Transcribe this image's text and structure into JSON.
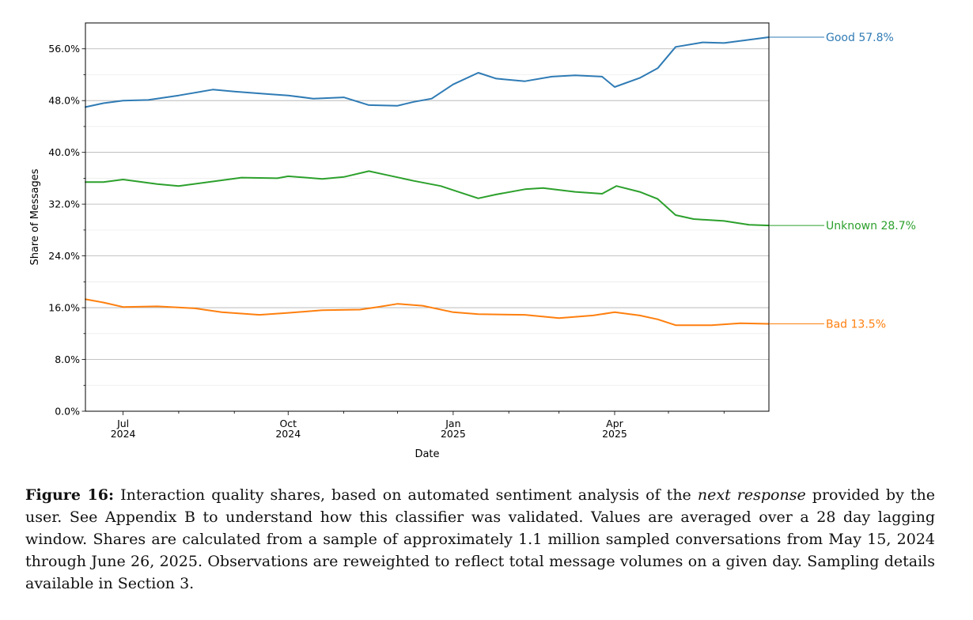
{
  "chart_data": {
    "type": "line",
    "xlabel": "Date",
    "ylabel": "Share of Messages",
    "x_start": "2024-06-10",
    "x_end": "2025-06-26",
    "ylim": [
      0,
      60
    ],
    "yticks": [
      0,
      8,
      16,
      24,
      32,
      40,
      48,
      56
    ],
    "ytick_labels": [
      "0.0%",
      "8.0%",
      "16.0%",
      "24.0%",
      "32.0%",
      "40.0%",
      "48.0%",
      "56.0%"
    ],
    "xticks_major": [
      {
        "date": "2024-07-01",
        "line1": "Jul",
        "line2": "2024"
      },
      {
        "date": "2024-10-01",
        "line1": "Oct",
        "line2": "2024"
      },
      {
        "date": "2025-01-01",
        "line1": "Jan",
        "line2": "2025"
      },
      {
        "date": "2025-04-01",
        "line1": "Apr",
        "line2": "2025"
      }
    ],
    "xticks_minor": [
      "2024-08-01",
      "2024-09-01",
      "2024-11-01",
      "2024-12-01",
      "2025-02-01",
      "2025-03-01",
      "2025-05-01",
      "2025-06-01"
    ],
    "grid": true,
    "series": [
      {
        "name": "Good",
        "label": "Good  57.8%",
        "color": "#2f7bb5",
        "points": [
          [
            "2024-06-10",
            47.0
          ],
          [
            "2024-06-20",
            47.6
          ],
          [
            "2024-07-01",
            48.0
          ],
          [
            "2024-07-15",
            48.1
          ],
          [
            "2024-08-01",
            48.8
          ],
          [
            "2024-08-20",
            49.7
          ],
          [
            "2024-09-01",
            49.4
          ],
          [
            "2024-09-20",
            49.0
          ],
          [
            "2024-10-01",
            48.8
          ],
          [
            "2024-10-15",
            48.3
          ],
          [
            "2024-11-01",
            48.5
          ],
          [
            "2024-11-15",
            47.3
          ],
          [
            "2024-12-01",
            47.2
          ],
          [
            "2024-12-10",
            47.8
          ],
          [
            "2024-12-20",
            48.3
          ],
          [
            "2025-01-01",
            50.5
          ],
          [
            "2025-01-15",
            52.3
          ],
          [
            "2025-01-25",
            51.4
          ],
          [
            "2025-02-10",
            51.0
          ],
          [
            "2025-02-25",
            51.7
          ],
          [
            "2025-03-10",
            51.9
          ],
          [
            "2025-03-25",
            51.7
          ],
          [
            "2025-04-01",
            50.1
          ],
          [
            "2025-04-15",
            51.5
          ],
          [
            "2025-04-25",
            53.0
          ],
          [
            "2025-05-05",
            56.3
          ],
          [
            "2025-05-20",
            57.0
          ],
          [
            "2025-06-01",
            56.9
          ],
          [
            "2025-06-15",
            57.4
          ],
          [
            "2025-06-26",
            57.8
          ]
        ]
      },
      {
        "name": "Unknown",
        "label": "Unknown  28.7%",
        "color": "#2ca02c",
        "points": [
          [
            "2024-06-10",
            35.4
          ],
          [
            "2024-06-20",
            35.4
          ],
          [
            "2024-07-01",
            35.8
          ],
          [
            "2024-07-20",
            35.1
          ],
          [
            "2024-08-01",
            34.8
          ],
          [
            "2024-08-20",
            35.5
          ],
          [
            "2024-09-05",
            36.1
          ],
          [
            "2024-09-25",
            36.0
          ],
          [
            "2024-10-01",
            36.3
          ],
          [
            "2024-10-20",
            35.9
          ],
          [
            "2024-11-01",
            36.2
          ],
          [
            "2024-11-15",
            37.1
          ],
          [
            "2024-11-25",
            36.5
          ],
          [
            "2024-12-10",
            35.6
          ],
          [
            "2024-12-25",
            34.8
          ],
          [
            "2025-01-05",
            33.8
          ],
          [
            "2025-01-15",
            32.9
          ],
          [
            "2025-01-25",
            33.5
          ],
          [
            "2025-02-10",
            34.3
          ],
          [
            "2025-02-20",
            34.5
          ],
          [
            "2025-03-10",
            33.9
          ],
          [
            "2025-03-25",
            33.6
          ],
          [
            "2025-04-02",
            34.8
          ],
          [
            "2025-04-15",
            33.9
          ],
          [
            "2025-04-25",
            32.8
          ],
          [
            "2025-05-05",
            30.3
          ],
          [
            "2025-05-15",
            29.7
          ],
          [
            "2025-06-01",
            29.4
          ],
          [
            "2025-06-15",
            28.8
          ],
          [
            "2025-06-26",
            28.7
          ]
        ]
      },
      {
        "name": "Bad",
        "label": "Bad  13.5%",
        "color": "#ff7f0e",
        "points": [
          [
            "2024-06-10",
            17.3
          ],
          [
            "2024-06-20",
            16.8
          ],
          [
            "2024-07-01",
            16.1
          ],
          [
            "2024-07-20",
            16.2
          ],
          [
            "2024-08-10",
            15.9
          ],
          [
            "2024-08-25",
            15.3
          ],
          [
            "2024-09-15",
            14.9
          ],
          [
            "2024-10-01",
            15.2
          ],
          [
            "2024-10-20",
            15.6
          ],
          [
            "2024-11-10",
            15.7
          ],
          [
            "2024-11-20",
            16.1
          ],
          [
            "2024-12-01",
            16.6
          ],
          [
            "2024-12-15",
            16.3
          ],
          [
            "2025-01-01",
            15.3
          ],
          [
            "2025-01-15",
            15.0
          ],
          [
            "2025-02-10",
            14.9
          ],
          [
            "2025-03-01",
            14.4
          ],
          [
            "2025-03-20",
            14.8
          ],
          [
            "2025-04-01",
            15.3
          ],
          [
            "2025-04-15",
            14.8
          ],
          [
            "2025-04-25",
            14.2
          ],
          [
            "2025-05-05",
            13.3
          ],
          [
            "2025-05-25",
            13.3
          ],
          [
            "2025-06-10",
            13.6
          ],
          [
            "2025-06-26",
            13.5
          ]
        ]
      }
    ]
  },
  "caption": {
    "label": "Figure 16:",
    "text_before": " Interaction quality shares, based on automated sentiment analysis of the ",
    "emphasis": "next response",
    "text_after": " provided by the user. See Appendix B to understand how this classifier was validated. Values are averaged over a 28 day lagging window. Shares are calculated from a sample of approximately 1.1 million sampled conversations from May 15, 2024 through June 26, 2025. Observations are reweighted to reflect total message volumes on a given day. Sampling details available in Section 3."
  }
}
